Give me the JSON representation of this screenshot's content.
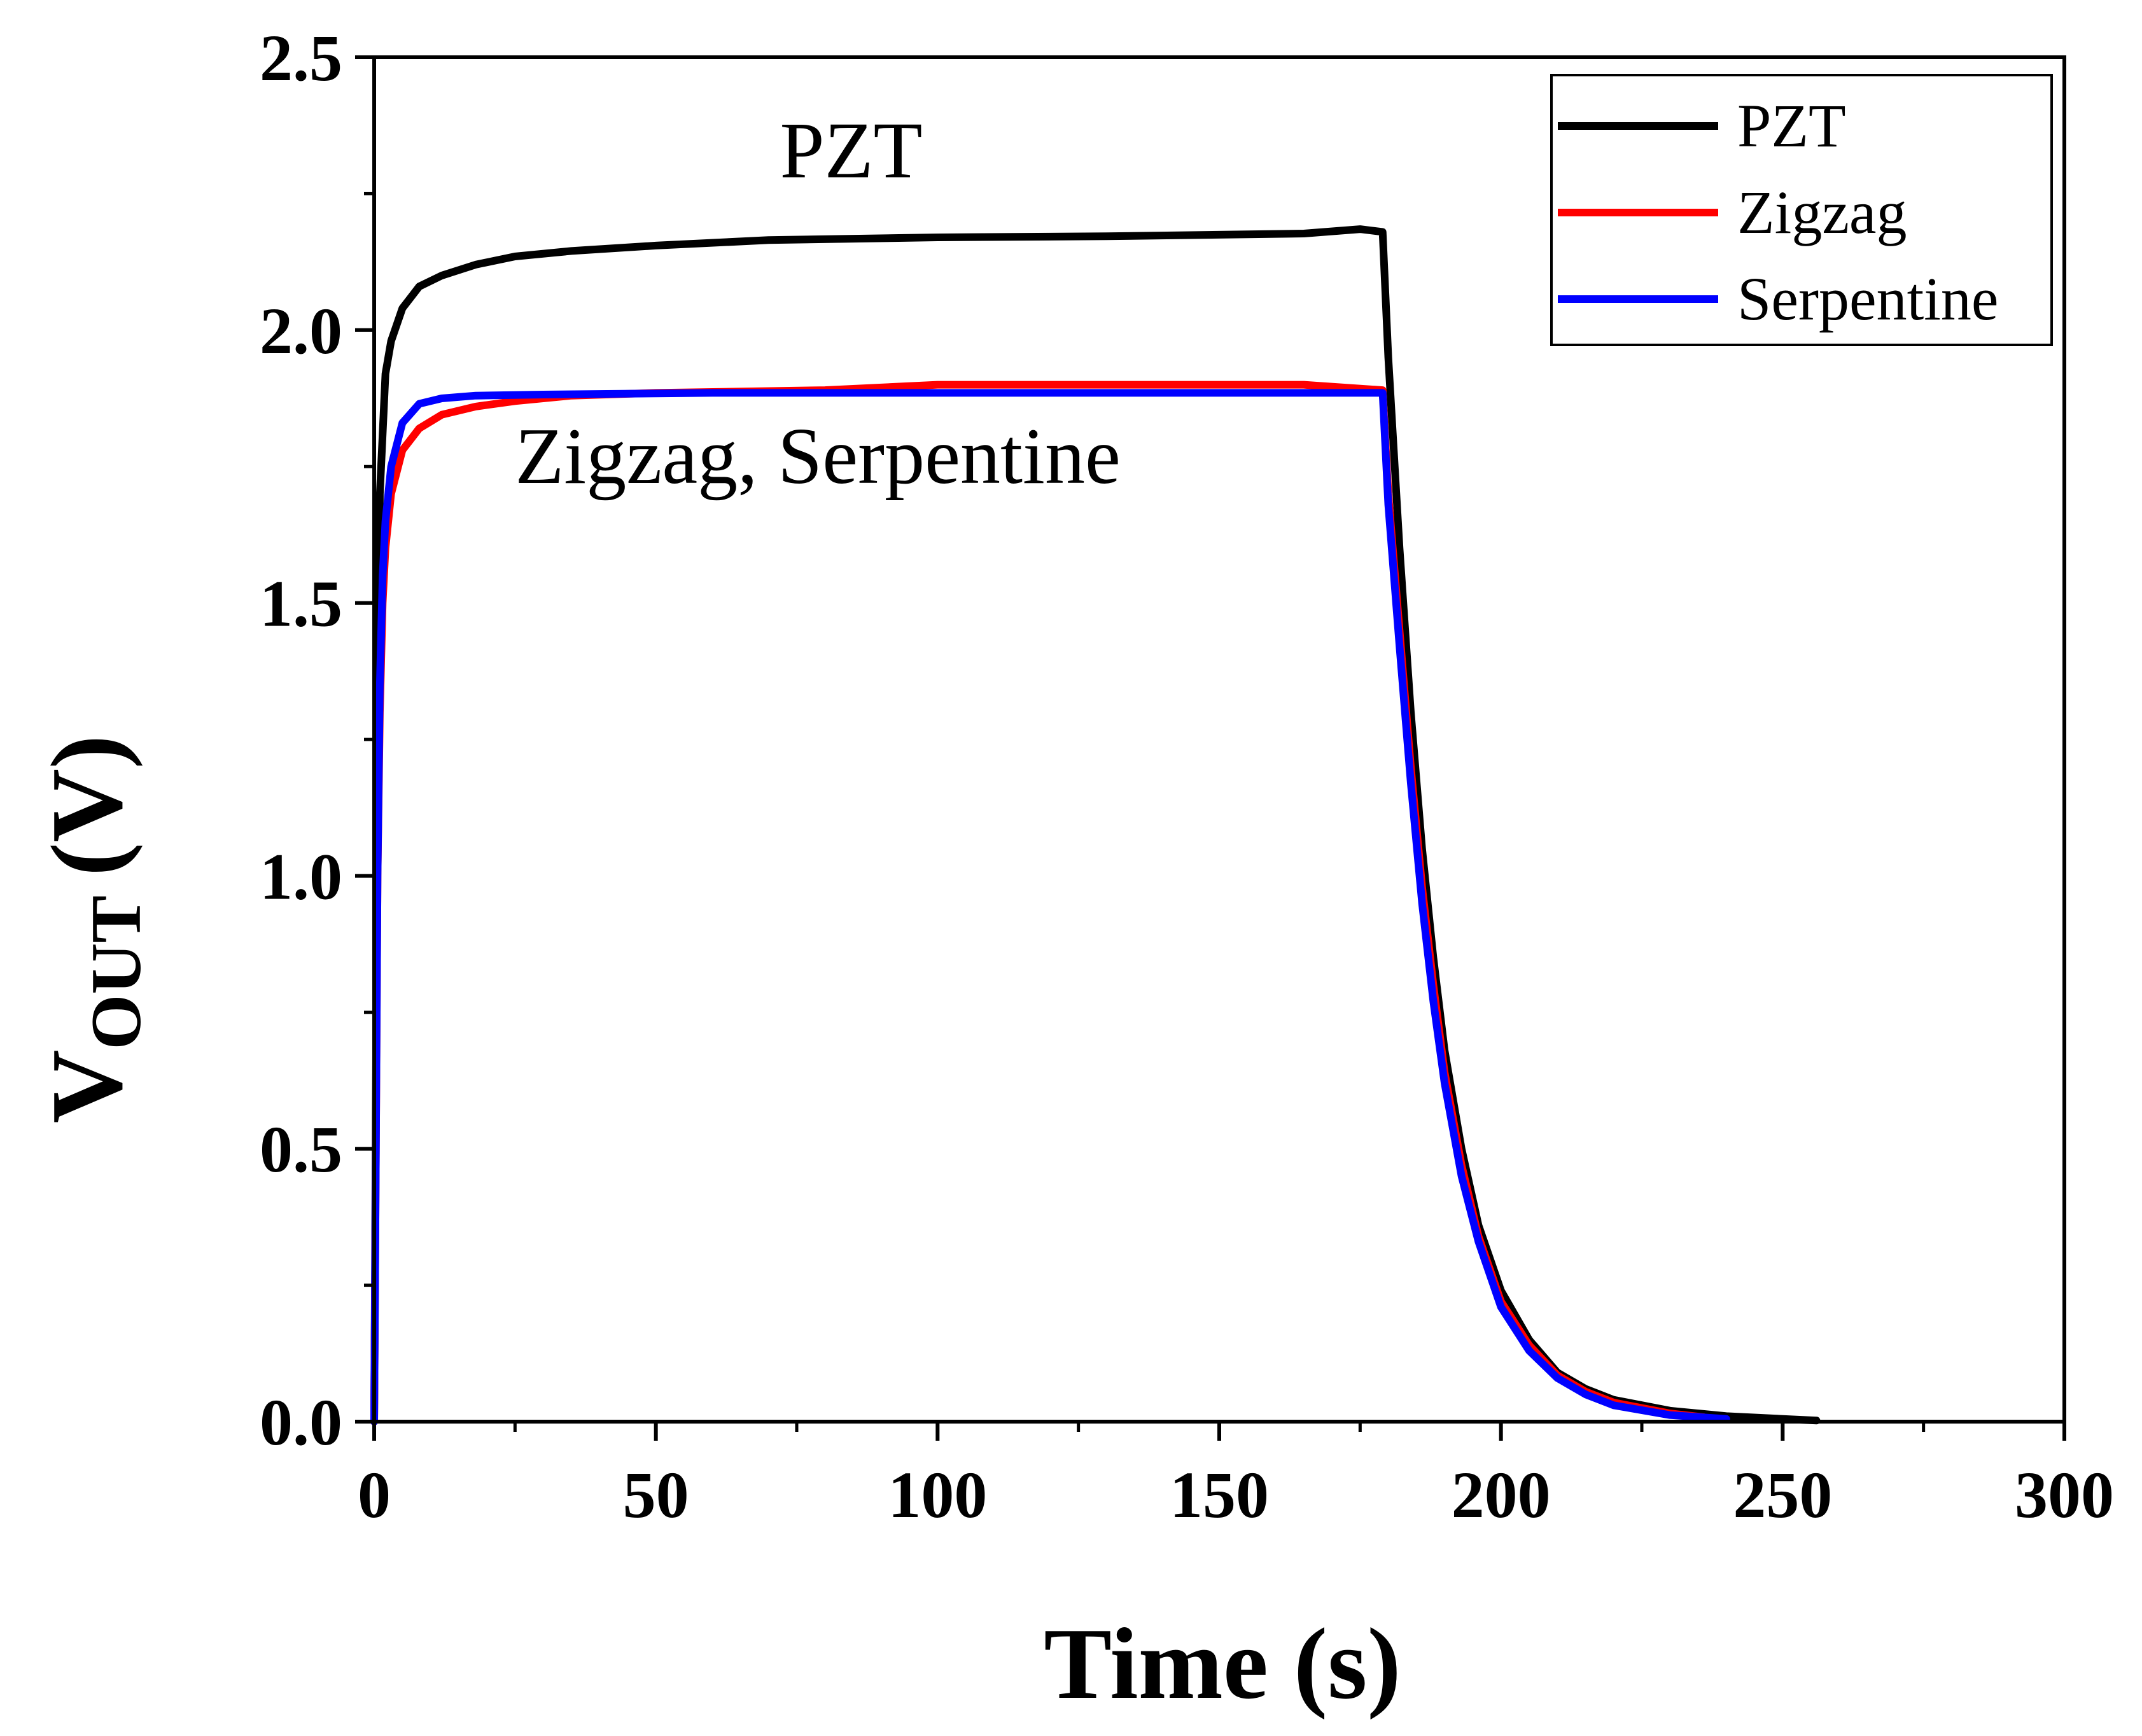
{
  "chart_data": {
    "type": "line",
    "title": "",
    "xlabel": "Time (s)",
    "ylabel": {
      "main": "V",
      "sub": "OUT",
      "unit": "(V)"
    },
    "xlim": [
      0,
      300
    ],
    "ylim": [
      0,
      2.5
    ],
    "xticks": [
      0,
      50,
      100,
      150,
      200,
      250,
      300
    ],
    "xtick_labels": [
      "0",
      "50",
      "100",
      "150",
      "200",
      "250",
      "300"
    ],
    "yticks": [
      0,
      0.5,
      1.0,
      1.5,
      2.0,
      2.5
    ],
    "ytick_labels": [
      "0.0",
      "0.5",
      "1.0",
      "1.5",
      "2.0",
      "2.5"
    ],
    "grid": false,
    "legend_position": "top-right",
    "annotations": [
      {
        "text": "PZT",
        "x": 72,
        "y": 2.28
      },
      {
        "text": "Zigzag, Serpentine",
        "x": 25,
        "y": 1.72
      }
    ],
    "series": [
      {
        "name": "PZT",
        "color": "#000000",
        "points": [
          [
            0,
            0
          ],
          [
            0.3,
            0.6
          ],
          [
            0.6,
            1.2
          ],
          [
            1,
            1.7
          ],
          [
            2,
            1.92
          ],
          [
            3,
            1.98
          ],
          [
            5,
            2.04
          ],
          [
            8,
            2.08
          ],
          [
            12,
            2.1
          ],
          [
            18,
            2.12
          ],
          [
            25,
            2.135
          ],
          [
            35,
            2.145
          ],
          [
            50,
            2.155
          ],
          [
            70,
            2.165
          ],
          [
            100,
            2.17
          ],
          [
            130,
            2.172
          ],
          [
            165,
            2.177
          ],
          [
            175,
            2.185
          ],
          [
            179,
            2.18
          ],
          [
            180,
            1.95
          ],
          [
            182,
            1.6
          ],
          [
            184,
            1.3
          ],
          [
            186,
            1.05
          ],
          [
            188,
            0.85
          ],
          [
            190,
            0.68
          ],
          [
            193,
            0.5
          ],
          [
            196,
            0.36
          ],
          [
            200,
            0.24
          ],
          [
            205,
            0.15
          ],
          [
            210,
            0.09
          ],
          [
            215,
            0.06
          ],
          [
            220,
            0.04
          ],
          [
            230,
            0.02
          ],
          [
            240,
            0.01
          ],
          [
            250,
            0.005
          ],
          [
            256,
            0.002
          ]
        ]
      },
      {
        "name": "Zigzag",
        "color": "#ff0000",
        "points": [
          [
            0,
            0
          ],
          [
            0.3,
            0.5
          ],
          [
            0.6,
            1.0
          ],
          [
            1,
            1.3
          ],
          [
            1.5,
            1.5
          ],
          [
            2,
            1.6
          ],
          [
            3,
            1.7
          ],
          [
            5,
            1.78
          ],
          [
            8,
            1.82
          ],
          [
            12,
            1.845
          ],
          [
            18,
            1.86
          ],
          [
            25,
            1.87
          ],
          [
            35,
            1.88
          ],
          [
            50,
            1.885
          ],
          [
            80,
            1.89
          ],
          [
            100,
            1.9
          ],
          [
            130,
            1.9
          ],
          [
            165,
            1.9
          ],
          [
            179,
            1.89
          ],
          [
            180,
            1.7
          ],
          [
            182,
            1.45
          ],
          [
            184,
            1.2
          ],
          [
            186,
            0.98
          ],
          [
            188,
            0.8
          ],
          [
            190,
            0.64
          ],
          [
            193,
            0.47
          ],
          [
            196,
            0.34
          ],
          [
            200,
            0.22
          ],
          [
            205,
            0.14
          ],
          [
            210,
            0.085
          ],
          [
            215,
            0.055
          ],
          [
            220,
            0.035
          ],
          [
            230,
            0.015
          ],
          [
            236,
            0.008
          ]
        ]
      },
      {
        "name": "Serpentine",
        "color": "#0000ff",
        "points": [
          [
            0,
            0
          ],
          [
            0.3,
            0.5
          ],
          [
            0.6,
            1.0
          ],
          [
            1,
            1.35
          ],
          [
            1.5,
            1.55
          ],
          [
            2,
            1.65
          ],
          [
            3,
            1.75
          ],
          [
            5,
            1.83
          ],
          [
            8,
            1.865
          ],
          [
            12,
            1.875
          ],
          [
            18,
            1.88
          ],
          [
            30,
            1.882
          ],
          [
            60,
            1.885
          ],
          [
            100,
            1.885
          ],
          [
            140,
            1.885
          ],
          [
            179,
            1.885
          ],
          [
            180,
            1.68
          ],
          [
            182,
            1.42
          ],
          [
            184,
            1.17
          ],
          [
            186,
            0.95
          ],
          [
            188,
            0.77
          ],
          [
            190,
            0.62
          ],
          [
            193,
            0.45
          ],
          [
            196,
            0.33
          ],
          [
            200,
            0.21
          ],
          [
            205,
            0.13
          ],
          [
            210,
            0.08
          ],
          [
            215,
            0.05
          ],
          [
            220,
            0.03
          ],
          [
            230,
            0.012
          ],
          [
            240,
            0.005
          ]
        ]
      }
    ]
  }
}
